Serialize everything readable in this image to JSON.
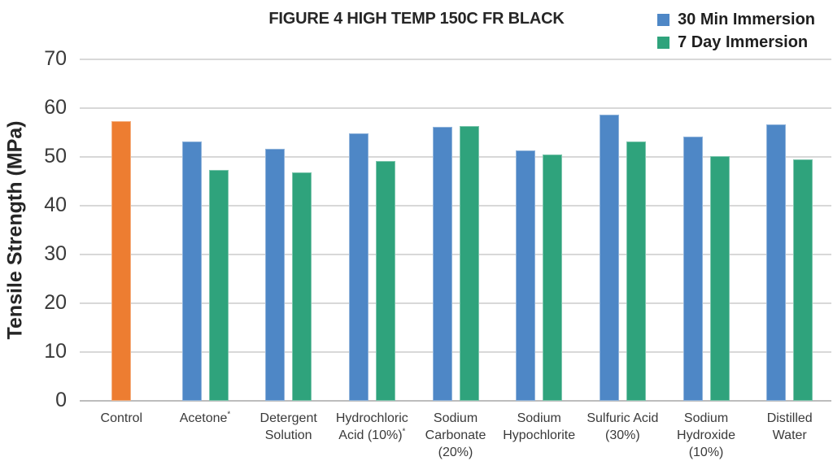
{
  "chart_data": {
    "type": "bar",
    "title": "FIGURE 4 HIGH TEMP 150C FR BLACK",
    "xlabel": "",
    "ylabel": "Tensile Strength (MPa)",
    "ylim": [
      0,
      70
    ],
    "ytick_step": 10,
    "yticks": [
      0,
      10,
      20,
      30,
      40,
      50,
      60,
      70
    ],
    "grid": true,
    "legend_position": "top-right",
    "categories": [
      "Control",
      "Acetone*",
      "Detergent Solution",
      "Hydrochloric Acid (10%)*",
      "Sodium Carbonate (20%)",
      "Sodium Hypochlorite",
      "Sulfuric Acid (30%)",
      "Sodium Hydroxide (10%)",
      "Distilled Water"
    ],
    "control_bar": {
      "category": "Control",
      "value": 57.4,
      "color": "#ED7D31",
      "in_legend": false
    },
    "series": [
      {
        "name": "30 Min Immersion",
        "color": "#4E87C6",
        "values": [
          null,
          53.2,
          51.6,
          54.8,
          56.2,
          51.3,
          58.6,
          54.2,
          56.7
        ]
      },
      {
        "name": "7 Day Immersion",
        "color": "#2FA37C",
        "values": [
          null,
          47.3,
          46.8,
          49.1,
          56.4,
          50.5,
          53.2,
          50.2,
          49.5
        ]
      }
    ]
  }
}
